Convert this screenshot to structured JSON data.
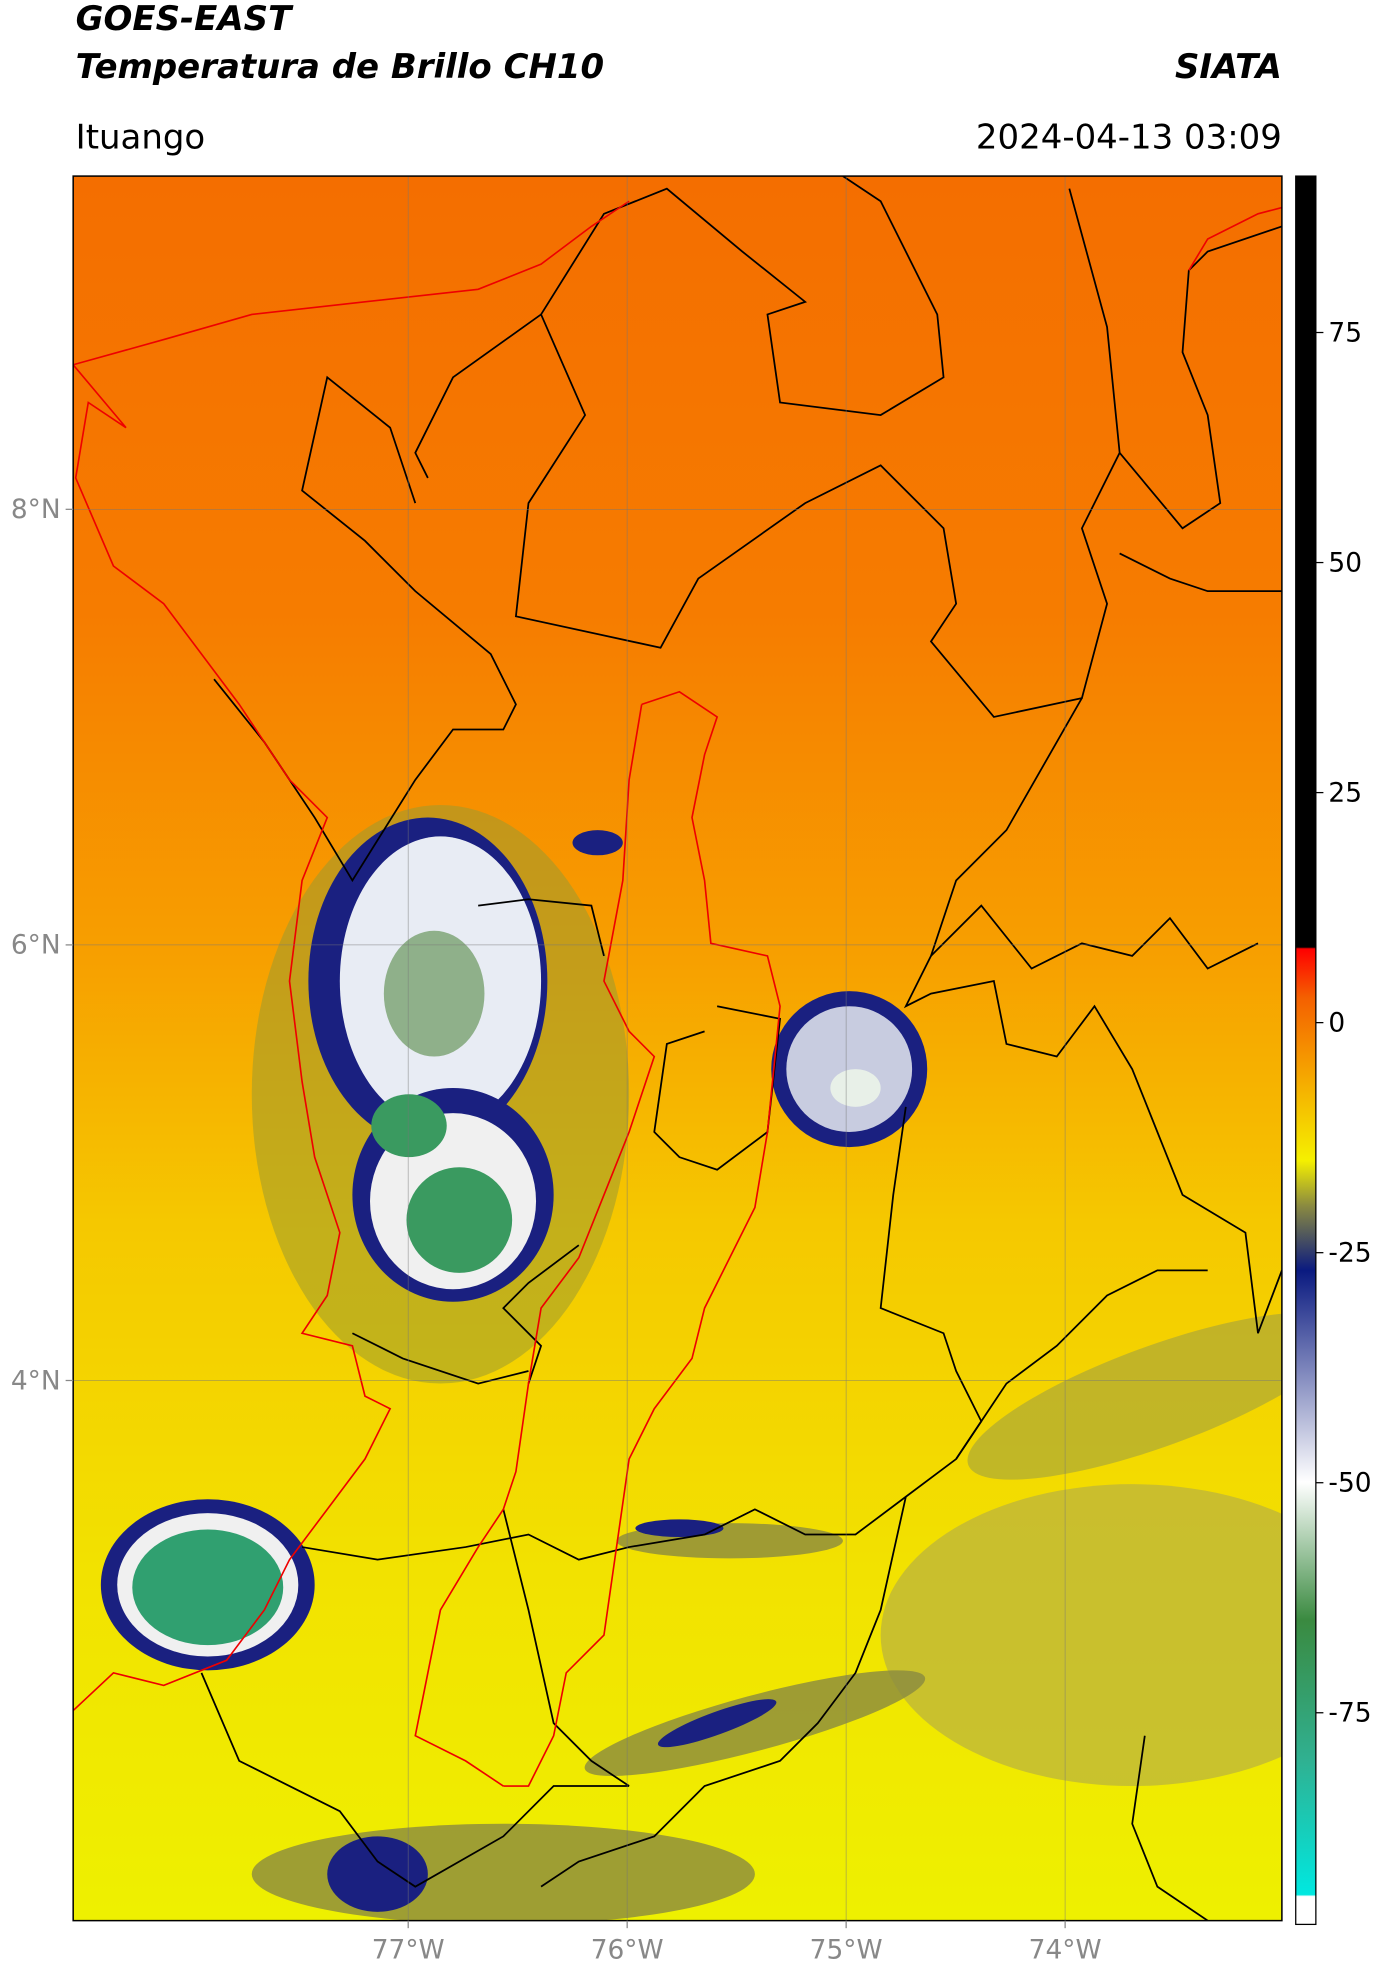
{
  "header": {
    "title": "GOES-EAST",
    "subtitle": "Temperatura de Brillo CH10",
    "source": "SIATA",
    "location": "Ituango",
    "datetime": "2024-04-13 03:09"
  },
  "map": {
    "xlim": [
      -78.53,
      -73.01
    ],
    "ylim": [
      1.52,
      9.53
    ],
    "xticks": [
      {
        "value": -77,
        "label": "77°W"
      },
      {
        "value": -76,
        "label": "76°W"
      },
      {
        "value": -75,
        "label": "75°W"
      },
      {
        "value": -74,
        "label": "74°W"
      }
    ],
    "yticks": [
      {
        "value": 8,
        "label": "8°N"
      },
      {
        "value": 6,
        "label": "6°N"
      },
      {
        "value": 4,
        "label": "4°N"
      }
    ],
    "grid": true
  },
  "colorbar": {
    "clim": [
      -98,
      92
    ],
    "ticks": [
      75,
      50,
      25,
      0,
      -25,
      -50,
      -75
    ]
  }
}
